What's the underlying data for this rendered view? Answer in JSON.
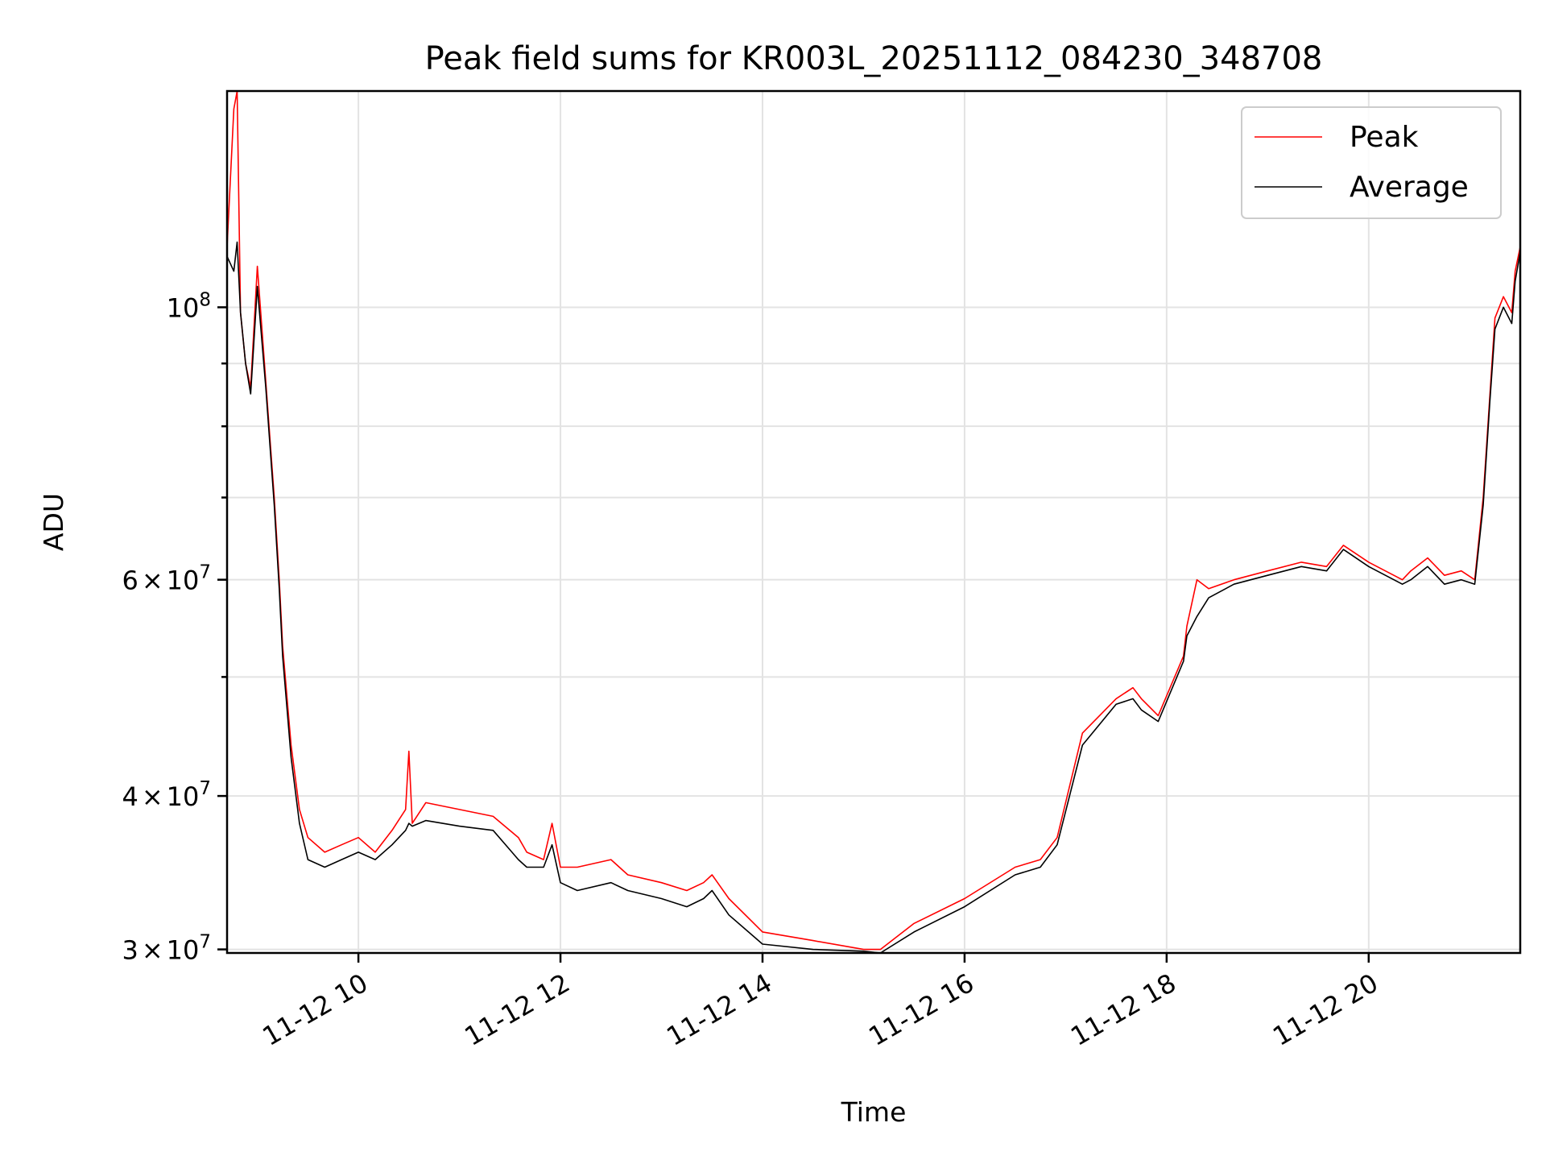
{
  "chart_data": {
    "type": "line",
    "title": "Peak field sums for KR003L_20251112_084230_348708",
    "xlabel": "Time",
    "ylabel": "ADU",
    "y_scale": "log",
    "grid": true,
    "legend_position": "top-right",
    "xlim": [
      "2025-11-12 08:42",
      "2025-11-12 21:30"
    ],
    "ylim": [
      29800000,
      150000000
    ],
    "x_ticks": [
      {
        "t": "2025-11-12 10:00",
        "label": "11-12 10"
      },
      {
        "t": "2025-11-12 12:00",
        "label": "11-12 12"
      },
      {
        "t": "2025-11-12 14:00",
        "label": "11-12 14"
      },
      {
        "t": "2025-11-12 16:00",
        "label": "11-12 16"
      },
      {
        "t": "2025-11-12 18:00",
        "label": "11-12 18"
      },
      {
        "t": "2025-11-12 20:00",
        "label": "11-12 20"
      }
    ],
    "y_major_ticks": [
      {
        "v": 30000000,
        "mantissa": "3",
        "times": "×",
        "base": "10",
        "exp": "7"
      },
      {
        "v": 40000000,
        "mantissa": "4",
        "times": "×",
        "base": "10",
        "exp": "7"
      },
      {
        "v": 60000000,
        "mantissa": "6",
        "times": "×",
        "base": "10",
        "exp": "7"
      },
      {
        "v": 100000000,
        "mantissa": "",
        "times": "",
        "base": "10",
        "exp": "8"
      }
    ],
    "y_minor_ticks": [
      50000000,
      70000000,
      80000000,
      90000000
    ],
    "series": [
      {
        "name": "Peak",
        "color": "#ff0000",
        "x": [
          "2025-11-12 08:42",
          "2025-11-12 08:46",
          "2025-11-12 08:48",
          "2025-11-12 08:50",
          "2025-11-12 08:53",
          "2025-11-12 08:56",
          "2025-11-12 09:00",
          "2025-11-12 09:05",
          "2025-11-12 09:10",
          "2025-11-12 09:13",
          "2025-11-12 09:15",
          "2025-11-12 09:20",
          "2025-11-12 09:25",
          "2025-11-12 09:30",
          "2025-11-12 09:40",
          "2025-11-12 09:50",
          "2025-11-12 10:00",
          "2025-11-12 10:10",
          "2025-11-12 10:20",
          "2025-11-12 10:28",
          "2025-11-12 10:30",
          "2025-11-12 10:32",
          "2025-11-12 10:40",
          "2025-11-12 11:00",
          "2025-11-12 11:20",
          "2025-11-12 11:35",
          "2025-11-12 11:40",
          "2025-11-12 11:50",
          "2025-11-12 11:55",
          "2025-11-12 12:00",
          "2025-11-12 12:10",
          "2025-11-12 12:30",
          "2025-11-12 12:40",
          "2025-11-12 13:00",
          "2025-11-12 13:15",
          "2025-11-12 13:25",
          "2025-11-12 13:30",
          "2025-11-12 13:40",
          "2025-11-12 14:00",
          "2025-11-12 14:30",
          "2025-11-12 15:00",
          "2025-11-12 15:10",
          "2025-11-12 15:30",
          "2025-11-12 16:00",
          "2025-11-12 16:30",
          "2025-11-12 16:45",
          "2025-11-12 16:55",
          "2025-11-12 17:10",
          "2025-11-12 17:30",
          "2025-11-12 17:40",
          "2025-11-12 17:45",
          "2025-11-12 17:55",
          "2025-11-12 18:10",
          "2025-11-12 18:12",
          "2025-11-12 18:18",
          "2025-11-12 18:25",
          "2025-11-12 18:40",
          "2025-11-12 19:00",
          "2025-11-12 19:20",
          "2025-11-12 19:35",
          "2025-11-12 19:45",
          "2025-11-12 20:00",
          "2025-11-12 20:20",
          "2025-11-12 20:25",
          "2025-11-12 20:35",
          "2025-11-12 20:45",
          "2025-11-12 20:55",
          "2025-11-12 21:03",
          "2025-11-12 21:08",
          "2025-11-12 21:12",
          "2025-11-12 21:15",
          "2025-11-12 21:20",
          "2025-11-12 21:25",
          "2025-11-12 21:27",
          "2025-11-12 21:30"
        ],
        "y": [
          112000000,
          145000000,
          150000000,
          99000000,
          90000000,
          86000000,
          108000000,
          87000000,
          70000000,
          60000000,
          53000000,
          44000000,
          39000000,
          37000000,
          36000000,
          36500000,
          37000000,
          36000000,
          37500000,
          39000000,
          43500000,
          38000000,
          39500000,
          39000000,
          38500000,
          37000000,
          36000000,
          35500000,
          38000000,
          35000000,
          35000000,
          35500000,
          34500000,
          34000000,
          33500000,
          34000000,
          34500000,
          33000000,
          31000000,
          30500000,
          30000000,
          30000000,
          31500000,
          33000000,
          35000000,
          35500000,
          37000000,
          45000000,
          48000000,
          49000000,
          48000000,
          46500000,
          52000000,
          55000000,
          60000000,
          59000000,
          60000000,
          61000000,
          62000000,
          61500000,
          64000000,
          62000000,
          60000000,
          61000000,
          62500000,
          60500000,
          61000000,
          60000000,
          70000000,
          85000000,
          98000000,
          102000000,
          99000000,
          107000000,
          112000000
        ]
      },
      {
        "name": "Average",
        "color": "#000000",
        "x": [
          "2025-11-12 08:42",
          "2025-11-12 08:46",
          "2025-11-12 08:48",
          "2025-11-12 08:50",
          "2025-11-12 08:53",
          "2025-11-12 08:56",
          "2025-11-12 09:00",
          "2025-11-12 09:05",
          "2025-11-12 09:10",
          "2025-11-12 09:13",
          "2025-11-12 09:15",
          "2025-11-12 09:20",
          "2025-11-12 09:25",
          "2025-11-12 09:30",
          "2025-11-12 09:40",
          "2025-11-12 09:50",
          "2025-11-12 10:00",
          "2025-11-12 10:10",
          "2025-11-12 10:20",
          "2025-11-12 10:28",
          "2025-11-12 10:30",
          "2025-11-12 10:32",
          "2025-11-12 10:40",
          "2025-11-12 11:00",
          "2025-11-12 11:20",
          "2025-11-12 11:35",
          "2025-11-12 11:40",
          "2025-11-12 11:50",
          "2025-11-12 11:55",
          "2025-11-12 12:00",
          "2025-11-12 12:10",
          "2025-11-12 12:30",
          "2025-11-12 12:40",
          "2025-11-12 13:00",
          "2025-11-12 13:15",
          "2025-11-12 13:25",
          "2025-11-12 13:30",
          "2025-11-12 13:40",
          "2025-11-12 14:00",
          "2025-11-12 14:30",
          "2025-11-12 15:00",
          "2025-11-12 15:10",
          "2025-11-12 15:30",
          "2025-11-12 16:00",
          "2025-11-12 16:30",
          "2025-11-12 16:45",
          "2025-11-12 16:55",
          "2025-11-12 17:10",
          "2025-11-12 17:30",
          "2025-11-12 17:40",
          "2025-11-12 17:45",
          "2025-11-12 17:55",
          "2025-11-12 18:10",
          "2025-11-12 18:12",
          "2025-11-12 18:18",
          "2025-11-12 18:25",
          "2025-11-12 18:40",
          "2025-11-12 19:00",
          "2025-11-12 19:20",
          "2025-11-12 19:35",
          "2025-11-12 19:45",
          "2025-11-12 20:00",
          "2025-11-12 20:20",
          "2025-11-12 20:25",
          "2025-11-12 20:35",
          "2025-11-12 20:45",
          "2025-11-12 20:55",
          "2025-11-12 21:03",
          "2025-11-12 21:08",
          "2025-11-12 21:12",
          "2025-11-12 21:15",
          "2025-11-12 21:20",
          "2025-11-12 21:25",
          "2025-11-12 21:27",
          "2025-11-12 21:30"
        ],
        "y": [
          110000000,
          107000000,
          113000000,
          99000000,
          90000000,
          85000000,
          104000000,
          86000000,
          69000000,
          59000000,
          52000000,
          43000000,
          38000000,
          35500000,
          35000000,
          35500000,
          36000000,
          35500000,
          36500000,
          37500000,
          38000000,
          37800000,
          38200000,
          37800000,
          37500000,
          35500000,
          35000000,
          35000000,
          36500000,
          34000000,
          33500000,
          34000000,
          33500000,
          33000000,
          32500000,
          33000000,
          33500000,
          32000000,
          30300000,
          30000000,
          29900000,
          29800000,
          31000000,
          32500000,
          34500000,
          35000000,
          36500000,
          44000000,
          47500000,
          48000000,
          47000000,
          46000000,
          51500000,
          54000000,
          56000000,
          58000000,
          59500000,
          60500000,
          61500000,
          61000000,
          63500000,
          61500000,
          59500000,
          60000000,
          61500000,
          59500000,
          60000000,
          59500000,
          69000000,
          84000000,
          96000000,
          100000000,
          97000000,
          105000000,
          111000000
        ]
      }
    ]
  }
}
